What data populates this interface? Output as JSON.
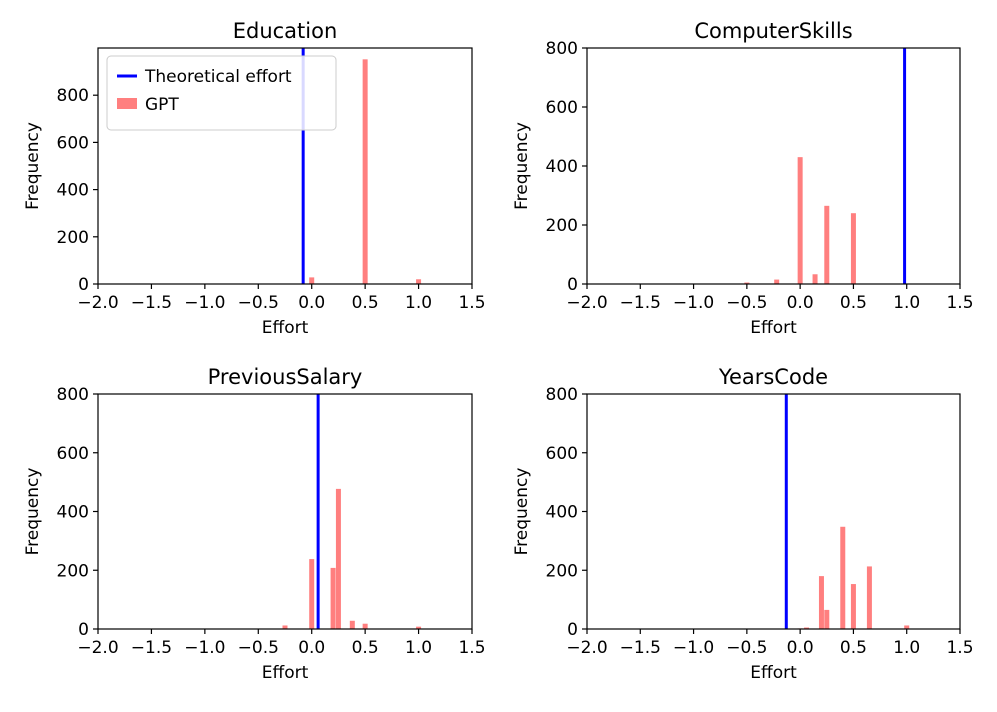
{
  "chart_data": [
    {
      "type": "bar",
      "title": "Education",
      "xlabel": "Effort",
      "ylabel": "Frequency",
      "xlim": [
        -2.0,
        1.5
      ],
      "ylim": [
        0,
        1000
      ],
      "xticks": [
        "−2.0",
        "−1.5",
        "−1.0",
        "−0.5",
        "0.0",
        "0.5",
        "1.0",
        "1.5"
      ],
      "yticks": [
        "0",
        "200",
        "400",
        "600",
        "800"
      ],
      "theoretical_effort": -0.08,
      "series": [
        {
          "name": "GPT",
          "x": [
            0.0,
            0.5,
            1.0
          ],
          "values": [
            28,
            952,
            20
          ]
        }
      ],
      "legend": {
        "position": "upper-left",
        "entries": [
          "Theoretical effort",
          "GPT"
        ]
      }
    },
    {
      "type": "bar",
      "title": "ComputerSkills",
      "xlabel": "Effort",
      "ylabel": "Frequency",
      "xlim": [
        -2.0,
        1.5
      ],
      "ylim": [
        0,
        800
      ],
      "xticks": [
        "−2.0",
        "−1.5",
        "−1.0",
        "−0.5",
        "0.0",
        "0.5",
        "1.0",
        "1.5"
      ],
      "yticks": [
        "0",
        "200",
        "400",
        "600",
        "800"
      ],
      "theoretical_effort": 0.98,
      "series": [
        {
          "name": "GPT",
          "x": [
            -0.5,
            -0.22,
            0.0,
            0.14,
            0.25,
            0.5
          ],
          "values": [
            5,
            15,
            430,
            33,
            265,
            240
          ]
        }
      ]
    },
    {
      "type": "bar",
      "title": "PreviousSalary",
      "xlabel": "Effort",
      "ylabel": "Frequency",
      "xlim": [
        -2.0,
        1.5
      ],
      "ylim": [
        0,
        800
      ],
      "xticks": [
        "−2.0",
        "−1.5",
        "−1.0",
        "−0.5",
        "0.0",
        "0.5",
        "1.0",
        "1.5"
      ],
      "yticks": [
        "0",
        "200",
        "400",
        "600",
        "800"
      ],
      "theoretical_effort": 0.06,
      "series": [
        {
          "name": "GPT",
          "x": [
            -0.25,
            0.0,
            0.2,
            0.25,
            0.38,
            0.5,
            1.0
          ],
          "values": [
            12,
            238,
            208,
            477,
            28,
            18,
            8
          ]
        }
      ]
    },
    {
      "type": "bar",
      "title": "YearsCode",
      "xlabel": "Effort",
      "ylabel": "Frequency",
      "xlim": [
        -2.0,
        1.5
      ],
      "ylim": [
        0,
        800
      ],
      "xticks": [
        "−2.0",
        "−1.5",
        "−1.0",
        "−0.5",
        "0.0",
        "0.5",
        "1.0",
        "1.5"
      ],
      "yticks": [
        "0",
        "200",
        "400",
        "600",
        "800"
      ],
      "theoretical_effort": -0.13,
      "series": [
        {
          "name": "GPT",
          "x": [
            0.0,
            0.06,
            0.2,
            0.25,
            0.4,
            0.5,
            0.65,
            1.0
          ],
          "values": [
            2,
            5,
            180,
            65,
            348,
            153,
            213,
            12
          ]
        }
      ]
    }
  ],
  "colors": {
    "theoretical_line": "#0000ff",
    "gpt_bar": "#ff7f7f",
    "axis": "#000000"
  }
}
